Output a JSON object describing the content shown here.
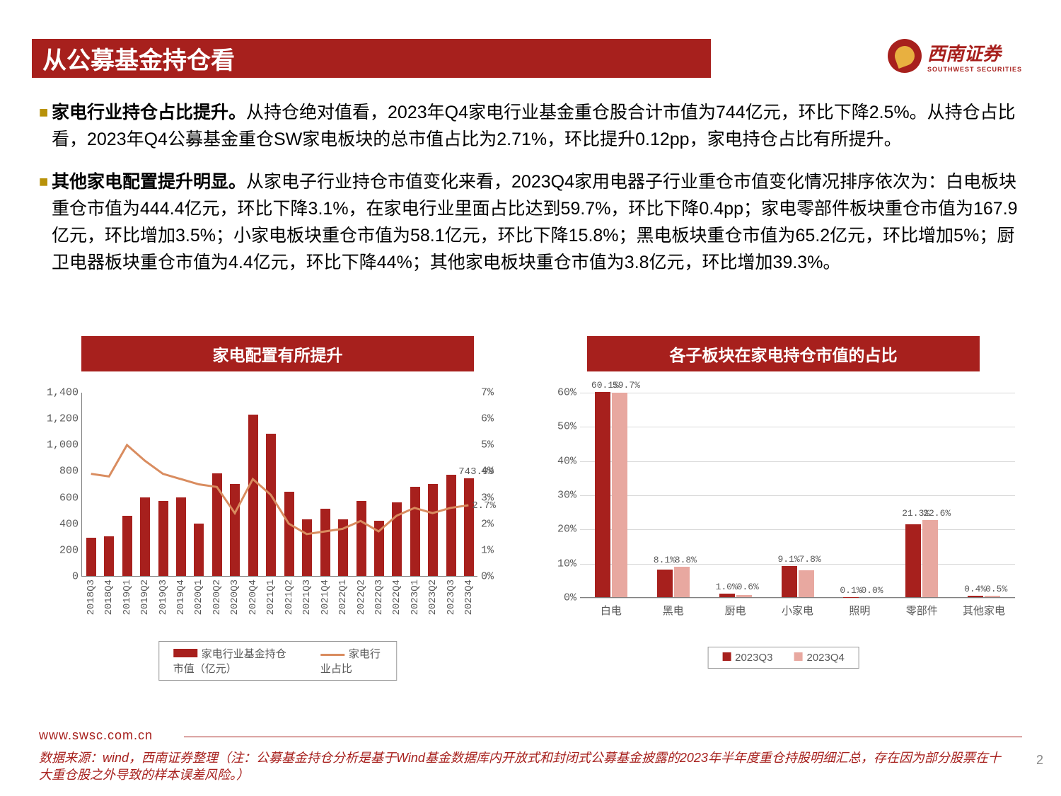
{
  "header": {
    "title": "从公募基金持仓看"
  },
  "logo": {
    "brand": "西南证券",
    "sub": "SOUTHWEST SECURITIES"
  },
  "bullets": [
    {
      "strong": "家电行业持仓占比提升。",
      "text": "从持仓绝对值看，2023年Q4家电行业基金重仓股合计市值为744亿元，环比下降2.5%。从持仓占比看，2023年Q4公募基金重仓SW家电板块的总市值占比为2.71%，环比提升0.12pp，家电持仓占比有所提升。"
    },
    {
      "strong": "其他家电配置提升明显。",
      "text": "从家电子行业持仓市值变化来看，2023Q4家用电器子行业重仓市值变化情况排序依次为：白电板块重仓市值为444.4亿元，环比下降3.1%，在家电行业里面占比达到59.7%，环比下降0.4pp；家电零部件板块重仓市值为167.9亿元，环比增加3.5%；小家电板块重仓市值为58.1亿元，环比下降15.8%；黑电板块重仓市值为65.2亿元，环比增加5%；厨卫电器板块重仓市值为4.4亿元，环比下降44%；其他家电板块重仓市值为3.8亿元，环比增加39.3%。"
    }
  ],
  "chart1": {
    "title": "家电配置有所提升",
    "y_left": {
      "max": 1400,
      "step": 200
    },
    "y_right": {
      "max": 7,
      "step": 1
    },
    "categories": [
      "2018Q3",
      "2018Q4",
      "2019Q1",
      "2019Q2",
      "2019Q3",
      "2019Q4",
      "2020Q1",
      "2020Q2",
      "2020Q3",
      "2020Q4",
      "2021Q1",
      "2021Q2",
      "2021Q3",
      "2021Q4",
      "2022Q1",
      "2022Q2",
      "2022Q3",
      "2022Q4",
      "2023Q1",
      "2023Q2",
      "2023Q3",
      "2023Q4"
    ],
    "bars": [
      290,
      300,
      460,
      600,
      570,
      600,
      400,
      780,
      700,
      1230,
      1080,
      640,
      430,
      510,
      430,
      570,
      420,
      560,
      680,
      700,
      770,
      743.99
    ],
    "line": [
      3.9,
      3.8,
      5.0,
      4.4,
      3.9,
      3.7,
      3.5,
      3.4,
      2.4,
      3.7,
      3.1,
      2.0,
      1.6,
      1.7,
      1.8,
      2.1,
      1.7,
      2.3,
      2.6,
      2.4,
      2.6,
      2.7
    ],
    "bar_color": "#a7201d",
    "line_color": "#d98c5f",
    "callout_value": "743.99",
    "callout_pct": "2.7%",
    "legend": {
      "bar": "家电行业基金持仓市值（亿元）",
      "line": "家电行业占比"
    }
  },
  "chart2": {
    "title": "各子板块在家电持仓市值的占比",
    "y": {
      "max": 60,
      "step": 10
    },
    "categories": [
      "白电",
      "黑电",
      "厨电",
      "小家电",
      "照明",
      "零部件",
      "其他家电"
    ],
    "series": [
      {
        "name": "2023Q3",
        "color": "#a7201d",
        "values": [
          60.1,
          8.1,
          1.0,
          9.1,
          0.1,
          21.3,
          0.4
        ]
      },
      {
        "name": "2023Q4",
        "color": "#e8a8a0",
        "values": [
          59.7,
          8.8,
          0.6,
          7.8,
          0.0,
          22.6,
          0.5
        ]
      }
    ],
    "labels": [
      [
        "60.1%",
        "59.7%"
      ],
      [
        "8.1%",
        "8.8%"
      ],
      [
        "1.0%",
        "0.6%"
      ],
      [
        "9.1%",
        "7.8%"
      ],
      [
        "0.1%",
        "0.0%"
      ],
      [
        "21.3%",
        "22.6%"
      ],
      [
        "0.4%",
        "0.5%"
      ]
    ]
  },
  "footer": {
    "url": "www.swsc.com.cn",
    "note": "数据来源：wind，西南证券整理（注：公募基金持仓分析是基于Wind基金数据库内开放式和封闭式公募基金披露的2023年半年度重仓持股明细汇总，存在因为部分股票在十大重仓股之外导致的样本误差风险。）",
    "page": "2"
  }
}
